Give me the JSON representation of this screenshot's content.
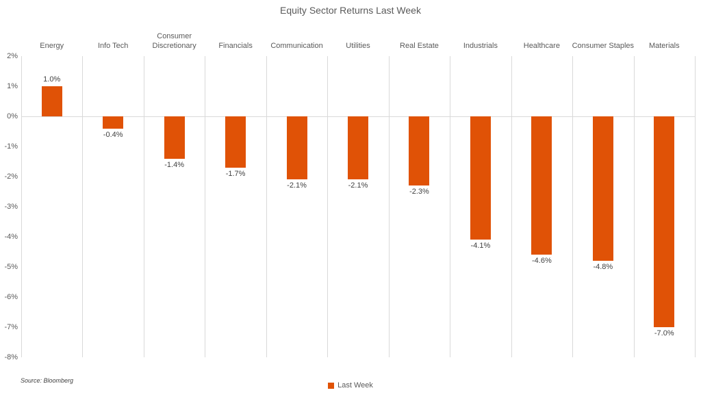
{
  "title": "Equity Sector Returns Last Week",
  "source_note": "Source: Bloomberg",
  "legend": {
    "label": "Last Week"
  },
  "colors": {
    "bar": "#E05206",
    "gridline": "#D9D9D9",
    "axis_text": "#595959",
    "data_label_text": "#404040"
  },
  "chart_data": {
    "type": "bar",
    "title": "Equity Sector Returns Last Week",
    "categories": [
      "Energy",
      "Info Tech",
      "Consumer\nDiscretionary",
      "Financials",
      "Communication",
      "Utilities",
      "Real Estate",
      "Industrials",
      "Healthcare",
      "Consumer Staples",
      "Materials"
    ],
    "series": [
      {
        "name": "Last Week",
        "values": [
          1.0,
          -0.4,
          -1.4,
          -1.7,
          -2.1,
          -2.1,
          -2.3,
          -4.1,
          -4.6,
          -4.8,
          -7.0
        ],
        "value_labels": [
          "1.0%",
          "-0.4%",
          "-1.4%",
          "-1.7%",
          "-2.1%",
          "-2.1%",
          "-2.3%",
          "-4.1%",
          "-4.6%",
          "-4.8%",
          "-7.0%"
        ],
        "color": "#E05206"
      }
    ],
    "xlabel": "",
    "ylabel": "",
    "ylim": [
      -8,
      2
    ],
    "y_tick_step": 1,
    "y_tick_labels": [
      "2%",
      "1%",
      "0%",
      "-1%",
      "-2%",
      "-3%",
      "-4%",
      "-5%",
      "-6%",
      "-7%",
      "-8%"
    ],
    "grid": "vertical category separators + zero line only",
    "data_labels": "outside end",
    "legend_position": "bottom-center"
  }
}
